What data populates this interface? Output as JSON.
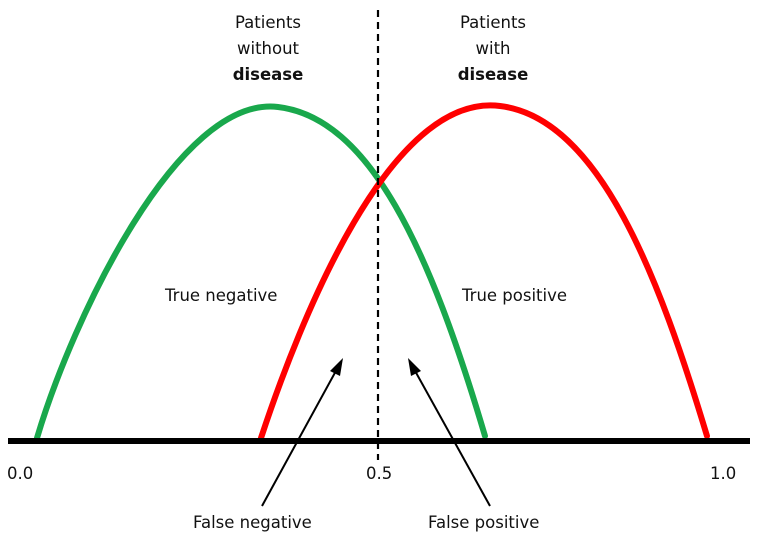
{
  "groups": {
    "without": {
      "line1": "Patients",
      "line2": "without",
      "line3": "disease",
      "color": "#19a84c"
    },
    "with": {
      "line1": "Patients",
      "line2": "with",
      "line3": "disease",
      "color": "#ff0000"
    }
  },
  "regions": {
    "true_negative": "True negative",
    "true_positive": "True positive",
    "false_negative": "False negative",
    "false_positive": "False positive"
  },
  "axis": {
    "ticks": [
      "0.0",
      "0.5",
      "1.0"
    ],
    "threshold": 0.5
  },
  "colors": {
    "axis": "#000000",
    "threshold": "#000000"
  }
}
